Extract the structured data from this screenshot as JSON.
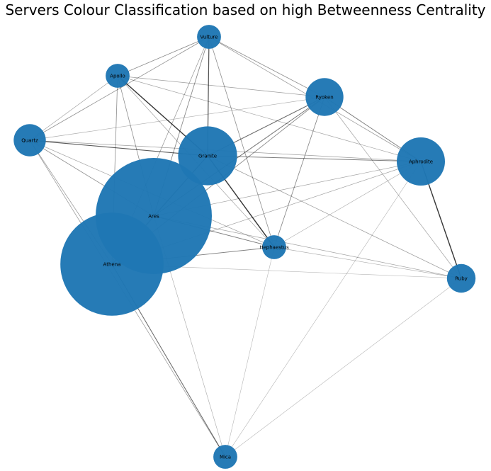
{
  "title": "Servers Colour Classification based on high Betweenness Centrality",
  "colors": {
    "node": "#1f77b4",
    "edge": "#000000",
    "label": "#000000"
  },
  "chart_data": {
    "type": "network",
    "nodes": [
      {
        "id": "Vulture",
        "label": "Vulture",
        "betweenness": 0.01
      },
      {
        "id": "Apollo",
        "label": "Apollo",
        "betweenness": 0.01
      },
      {
        "id": "Ryoken",
        "label": "Ryoken",
        "betweenness": 0.05
      },
      {
        "id": "Quartz",
        "label": "Quartz",
        "betweenness": 0.03
      },
      {
        "id": "Granite",
        "label": "Granite",
        "betweenness": 0.17
      },
      {
        "id": "Aphrodite",
        "label": "Aphrodite",
        "betweenness": 0.1
      },
      {
        "id": "Ares",
        "label": "Ares",
        "betweenness": 0.85
      },
      {
        "id": "Hephaestus",
        "label": "Hephaestus",
        "betweenness": 0.01
      },
      {
        "id": "Athena",
        "label": "Athena",
        "betweenness": 0.65
      },
      {
        "id": "Ruby",
        "label": "Ruby",
        "betweenness": 0.02
      },
      {
        "id": "Mica",
        "label": "Mica",
        "betweenness": 0.01
      }
    ],
    "edges": [
      {
        "source": "Vulture",
        "target": "Granite",
        "weight": 0.75
      },
      {
        "source": "Vulture",
        "target": "Apollo",
        "weight": 0.45
      },
      {
        "source": "Vulture",
        "target": "Ryoken",
        "weight": 0.4
      },
      {
        "source": "Vulture",
        "target": "Quartz",
        "weight": 0.4
      },
      {
        "source": "Vulture",
        "target": "Aphrodite",
        "weight": 0.35
      },
      {
        "source": "Vulture",
        "target": "Ares",
        "weight": 0.45
      },
      {
        "source": "Vulture",
        "target": "Hephaestus",
        "weight": 0.4
      },
      {
        "source": "Vulture",
        "target": "Athena",
        "weight": 0.35
      },
      {
        "source": "Apollo",
        "target": "Granite",
        "weight": 0.9
      },
      {
        "source": "Apollo",
        "target": "Ryoken",
        "weight": 0.35
      },
      {
        "source": "Apollo",
        "target": "Aphrodite",
        "weight": 0.3
      },
      {
        "source": "Apollo",
        "target": "Quartz",
        "weight": 0.3
      },
      {
        "source": "Apollo",
        "target": "Ares",
        "weight": 0.4
      },
      {
        "source": "Apollo",
        "target": "Athena",
        "weight": 0.4
      },
      {
        "source": "Apollo",
        "target": "Hephaestus",
        "weight": 0.3
      },
      {
        "source": "Ryoken",
        "target": "Granite",
        "weight": 0.6
      },
      {
        "source": "Ryoken",
        "target": "Aphrodite",
        "weight": 0.5
      },
      {
        "source": "Ryoken",
        "target": "Hephaestus",
        "weight": 0.45
      },
      {
        "source": "Ryoken",
        "target": "Ares",
        "weight": 0.55
      },
      {
        "source": "Ryoken",
        "target": "Athena",
        "weight": 0.45
      },
      {
        "source": "Ryoken",
        "target": "Quartz",
        "weight": 0.25
      },
      {
        "source": "Ryoken",
        "target": "Ruby",
        "weight": 0.3
      },
      {
        "source": "Quartz",
        "target": "Granite",
        "weight": 0.7
      },
      {
        "source": "Quartz",
        "target": "Aphrodite",
        "weight": 0.35
      },
      {
        "source": "Quartz",
        "target": "Ares",
        "weight": 0.4
      },
      {
        "source": "Quartz",
        "target": "Athena",
        "weight": 0.35
      },
      {
        "source": "Quartz",
        "target": "Hephaestus",
        "weight": 0.3
      },
      {
        "source": "Quartz",
        "target": "Mica",
        "weight": 0.35
      },
      {
        "source": "Granite",
        "target": "Hephaestus",
        "weight": 0.9
      },
      {
        "source": "Granite",
        "target": "Aphrodite",
        "weight": 0.5
      },
      {
        "source": "Granite",
        "target": "Ares",
        "weight": 0.6
      },
      {
        "source": "Granite",
        "target": "Athena",
        "weight": 0.5
      },
      {
        "source": "Granite",
        "target": "Ruby",
        "weight": 0.35
      },
      {
        "source": "Aphrodite",
        "target": "Ruby",
        "weight": 0.9
      },
      {
        "source": "Aphrodite",
        "target": "Ares",
        "weight": 0.3
      },
      {
        "source": "Aphrodite",
        "target": "Athena",
        "weight": 0.3
      },
      {
        "source": "Aphrodite",
        "target": "Hephaestus",
        "weight": 0.25
      },
      {
        "source": "Aphrodite",
        "target": "Mica",
        "weight": 0.2
      },
      {
        "source": "Ares",
        "target": "Hephaestus",
        "weight": 0.5
      },
      {
        "source": "Ares",
        "target": "Athena",
        "weight": 0.5
      },
      {
        "source": "Ares",
        "target": "Ruby",
        "weight": 0.3
      },
      {
        "source": "Ares",
        "target": "Mica",
        "weight": 0.25
      },
      {
        "source": "Athena",
        "target": "Hephaestus",
        "weight": 0.5
      },
      {
        "source": "Athena",
        "target": "Mica",
        "weight": 0.6
      },
      {
        "source": "Athena",
        "target": "Ruby",
        "weight": 0.2
      },
      {
        "source": "Hephaestus",
        "target": "Mica",
        "weight": 0.2
      },
      {
        "source": "Hephaestus",
        "target": "Ruby",
        "weight": 0.25
      },
      {
        "source": "Ruby",
        "target": "Mica",
        "weight": 0.2
      }
    ]
  }
}
